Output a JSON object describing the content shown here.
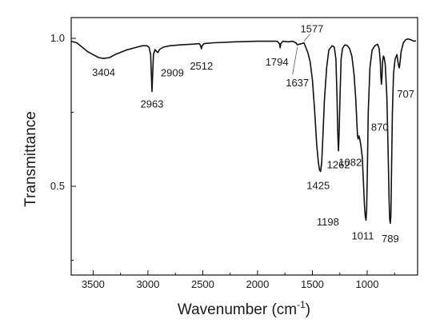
{
  "chart_data": {
    "type": "line",
    "title": "",
    "xlabel": "Wavenumber (cm",
    "xlabel_sup": "-1",
    "xlabel_close": ")",
    "ylabel": "Transmittance",
    "xlim": [
      3700,
      540
    ],
    "ylim": [
      0.2,
      1.07
    ],
    "x_reversed": true,
    "grid": false,
    "legend": "none",
    "line_color": "#111111",
    "x_ticks": [
      "3500",
      "3000",
      "2500",
      "2000",
      "1500",
      "1000"
    ],
    "y_ticks": [
      "1.0",
      "0.5"
    ],
    "series": [
      {
        "x": [
          3700,
          3650,
          3600,
          3550,
          3500,
          3450,
          3404,
          3350,
          3300,
          3200,
          3100,
          3050,
          3010,
          2990,
          2975,
          2968,
          2963,
          2958,
          2950,
          2935,
          2920,
          2909,
          2895,
          2860,
          2800,
          2700,
          2600,
          2530,
          2520,
          2512,
          2505,
          2490,
          2400,
          2200,
          2000,
          1900,
          1820,
          1800,
          1794,
          1788,
          1770,
          1720,
          1680,
          1650,
          1637,
          1620,
          1600,
          1577,
          1560,
          1540,
          1520,
          1500,
          1480,
          1460,
          1445,
          1435,
          1425,
          1415,
          1405,
          1390,
          1370,
          1350,
          1320,
          1300,
          1285,
          1275,
          1268,
          1262,
          1256,
          1248,
          1238,
          1225,
          1210,
          1198,
          1180,
          1160,
          1140,
          1120,
          1105,
          1095,
          1088,
          1082,
          1076,
          1068,
          1058,
          1045,
          1035,
          1025,
          1018,
          1011,
          1005,
          998,
          990,
          975,
          955,
          930,
          905,
          890,
          880,
          875,
          870,
          865,
          860,
          852,
          845,
          835,
          820,
          808,
          800,
          795,
          789,
          784,
          778,
          770,
          760,
          745,
          728,
          715,
          707,
          700,
          690,
          670,
          650,
          630,
          600,
          570,
          555
        ],
        "y": [
          0.99,
          0.985,
          0.97,
          0.955,
          0.945,
          0.935,
          0.932,
          0.935,
          0.945,
          0.96,
          0.97,
          0.975,
          0.975,
          0.97,
          0.945,
          0.87,
          0.82,
          0.87,
          0.945,
          0.962,
          0.955,
          0.952,
          0.962,
          0.97,
          0.975,
          0.978,
          0.98,
          0.982,
          0.975,
          0.965,
          0.975,
          0.982,
          0.985,
          0.988,
          0.99,
          0.99,
          0.99,
          0.982,
          0.968,
          0.982,
          0.99,
          0.988,
          0.99,
          0.985,
          0.978,
          0.98,
          0.982,
          0.985,
          0.97,
          0.95,
          0.92,
          0.86,
          0.76,
          0.64,
          0.58,
          0.555,
          0.55,
          0.58,
          0.66,
          0.79,
          0.9,
          0.96,
          0.975,
          0.97,
          0.93,
          0.8,
          0.68,
          0.62,
          0.68,
          0.8,
          0.93,
          0.965,
          0.975,
          0.978,
          0.975,
          0.965,
          0.94,
          0.88,
          0.8,
          0.72,
          0.67,
          0.66,
          0.67,
          0.66,
          0.64,
          0.6,
          0.52,
          0.44,
          0.4,
          0.385,
          0.42,
          0.55,
          0.75,
          0.9,
          0.96,
          0.975,
          0.98,
          0.965,
          0.92,
          0.87,
          0.845,
          0.87,
          0.92,
          0.94,
          0.935,
          0.91,
          0.8,
          0.6,
          0.45,
          0.39,
          0.375,
          0.4,
          0.55,
          0.75,
          0.88,
          0.93,
          0.945,
          0.91,
          0.9,
          0.92,
          0.955,
          0.985,
          0.995,
          0.998,
          0.995,
          0.99,
          0.992
        ]
      }
    ],
    "annotations": [
      {
        "label": "3404",
        "x": 3404,
        "y": 0.932
      },
      {
        "label": "2963",
        "x": 2963,
        "y": 0.82
      },
      {
        "label": "2909",
        "x": 2909,
        "y": 0.952
      },
      {
        "label": "2512",
        "x": 2512,
        "y": 0.965
      },
      {
        "label": "1794",
        "x": 1794,
        "y": 0.968
      },
      {
        "label": "1637",
        "x": 1637,
        "y": 0.978
      },
      {
        "label": "1577",
        "x": 1577,
        "y": 0.985
      },
      {
        "label": "1425",
        "x": 1425,
        "y": 0.55
      },
      {
        "label": "1262",
        "x": 1262,
        "y": 0.62
      },
      {
        "label": "1198",
        "x": 1198,
        "y": 0.978
      },
      {
        "label": "1082",
        "x": 1082,
        "y": 0.66
      },
      {
        "label": "1011",
        "x": 1011,
        "y": 0.385
      },
      {
        "label": "870",
        "x": 870,
        "y": 0.845
      },
      {
        "label": "789",
        "x": 789,
        "y": 0.375
      },
      {
        "label": "707",
        "x": 707,
        "y": 0.9
      }
    ]
  }
}
